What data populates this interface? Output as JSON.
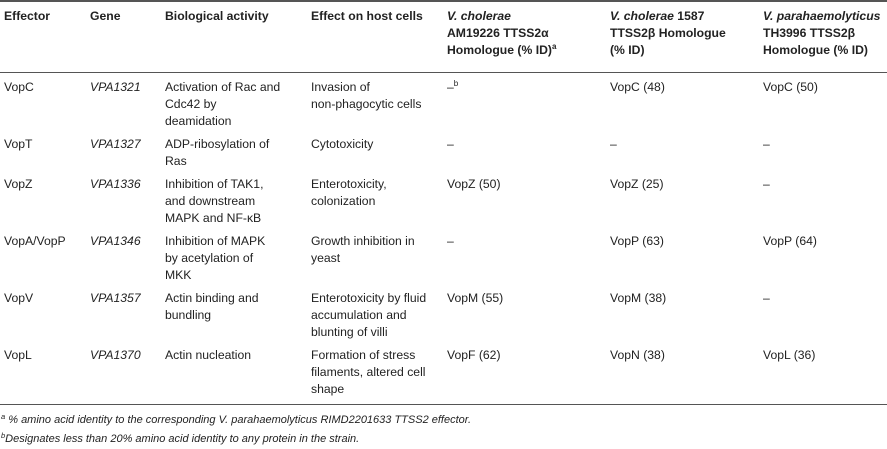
{
  "table": {
    "headers": {
      "effector": "Effector",
      "gene": "Gene",
      "activity": "Biological activity",
      "effect": "Effect on host cells",
      "vc_am_species": "V. cholerae",
      "vc_am_rest": "AM19226 TTSS2α",
      "vc_am_line2": "Homologue (% ID)",
      "vc_am_sup": "a",
      "vc1587_species": "V. cholerae",
      "vc1587_rest": " 1587",
      "vc1587_line2": "TTSS2β Homologue",
      "vc1587_line3": "(% ID)",
      "vp_species": "V. parahaemolyticus",
      "vp_line2": "TH3996 TTSS2β",
      "vp_line3": "Homologue (% ID)"
    },
    "rows": [
      {
        "effector": "VopC",
        "gene": "VPA1321",
        "activity": [
          "Activation of Rac and",
          "Cdc42 by",
          "deamidation"
        ],
        "effect": [
          "Invasion of",
          "non-phagocytic cells"
        ],
        "vc_am": "–",
        "vc_am_sup": "b",
        "vc1587": "VopC (48)",
        "vp": "VopC (50)"
      },
      {
        "effector": "VopT",
        "gene": "VPA1327",
        "activity": [
          "ADP-ribosylation of",
          "Ras"
        ],
        "effect": [
          "Cytotoxicity"
        ],
        "vc_am": "–",
        "vc_am_sup": "",
        "vc1587": "–",
        "vp": "–"
      },
      {
        "effector": "VopZ",
        "gene": "VPA1336",
        "activity": [
          "Inhibition of TAK1,",
          "and downstream",
          "MAPK and NF-κB"
        ],
        "effect": [
          "Enterotoxicity,",
          "colonization"
        ],
        "vc_am": "VopZ (50)",
        "vc_am_sup": "",
        "vc1587": "VopZ (25)",
        "vp": "–"
      },
      {
        "effector": "VopA/VopP",
        "gene": "VPA1346",
        "activity": [
          "Inhibition of MAPK",
          "by acetylation of",
          "MKK"
        ],
        "effect": [
          "Growth inhibition in",
          "yeast"
        ],
        "vc_am": "–",
        "vc_am_sup": "",
        "vc1587": "VopP (63)",
        "vp": "VopP (64)"
      },
      {
        "effector": "VopV",
        "gene": "VPA1357",
        "activity": [
          "Actin binding and",
          "bundling"
        ],
        "effect": [
          "Enterotoxicity by fluid",
          "accumulation and",
          "blunting of villi"
        ],
        "vc_am": "VopM (55)",
        "vc_am_sup": "",
        "vc1587": "VopM (38)",
        "vp": "–"
      },
      {
        "effector": "VopL",
        "gene": "VPA1370",
        "activity": [
          "Actin nucleation"
        ],
        "effect": [
          "Formation of stress",
          "filaments, altered cell",
          "shape"
        ],
        "vc_am": "VopF (62)",
        "vc_am_sup": "",
        "vc1587": "VopN (38)",
        "vp": "VopL (36)"
      }
    ]
  },
  "footnotes": [
    {
      "mark": "a",
      "text": " % amino acid identity to the corresponding V. parahaemolyticus RIMD2201633 TTSS2 effector."
    },
    {
      "mark": "b",
      "text": "Designates less than 20% amino acid identity to any protein in the strain."
    }
  ]
}
